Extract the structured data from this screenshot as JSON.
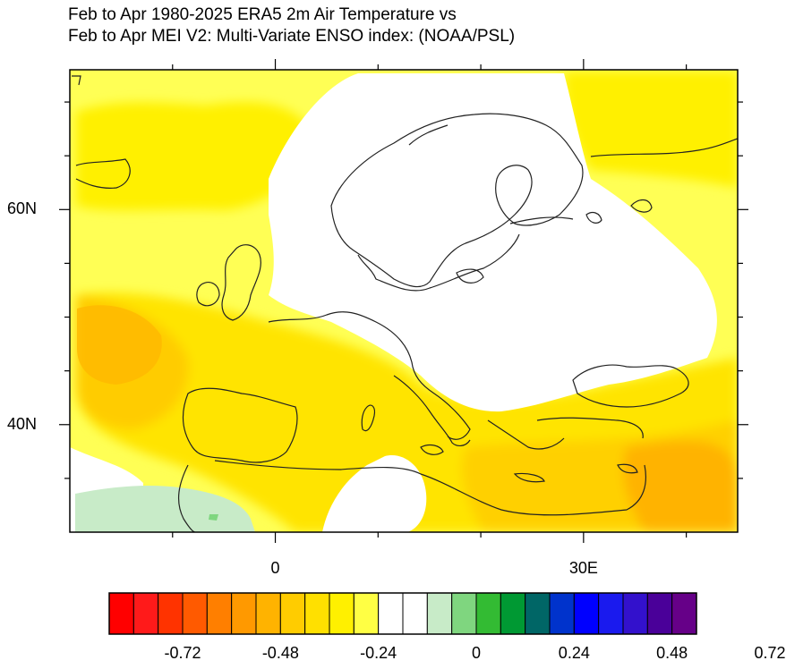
{
  "title": {
    "line1": "Feb to Apr 1980-2025 ERA5 2m Air Temperature vs",
    "line2": "Feb to Apr MEI V2: Multi-Variate ENSO index: (NOAA/PSL)"
  },
  "axes": {
    "lat_labels": [
      {
        "value": 60,
        "text": "60N"
      },
      {
        "value": 40,
        "text": "40N"
      }
    ],
    "lon_labels": [
      {
        "value": 0,
        "text": "0"
      },
      {
        "value": 30,
        "text": "30E"
      }
    ],
    "lon_range": [
      -20,
      45
    ],
    "lat_range": [
      30,
      73
    ]
  },
  "colorbar": {
    "colors": [
      "#ff0000",
      "#ff1a1a",
      "#ff3300",
      "#ff5a00",
      "#ff7f00",
      "#ff9900",
      "#ffb300",
      "#ffcc00",
      "#ffe000",
      "#fff000",
      "#ffff44",
      "#ffffff",
      "#ffffff",
      "#c8ebc8",
      "#7fd67f",
      "#33bb33",
      "#009933",
      "#006666",
      "#0033cc",
      "#0000ff",
      "#1a1aee",
      "#3311cc",
      "#4a0099",
      "#660088"
    ],
    "tick_labels": [
      "-0.72",
      "-0.48",
      "-0.24",
      "0",
      "0.24",
      "0.48",
      "0.72"
    ]
  }
}
